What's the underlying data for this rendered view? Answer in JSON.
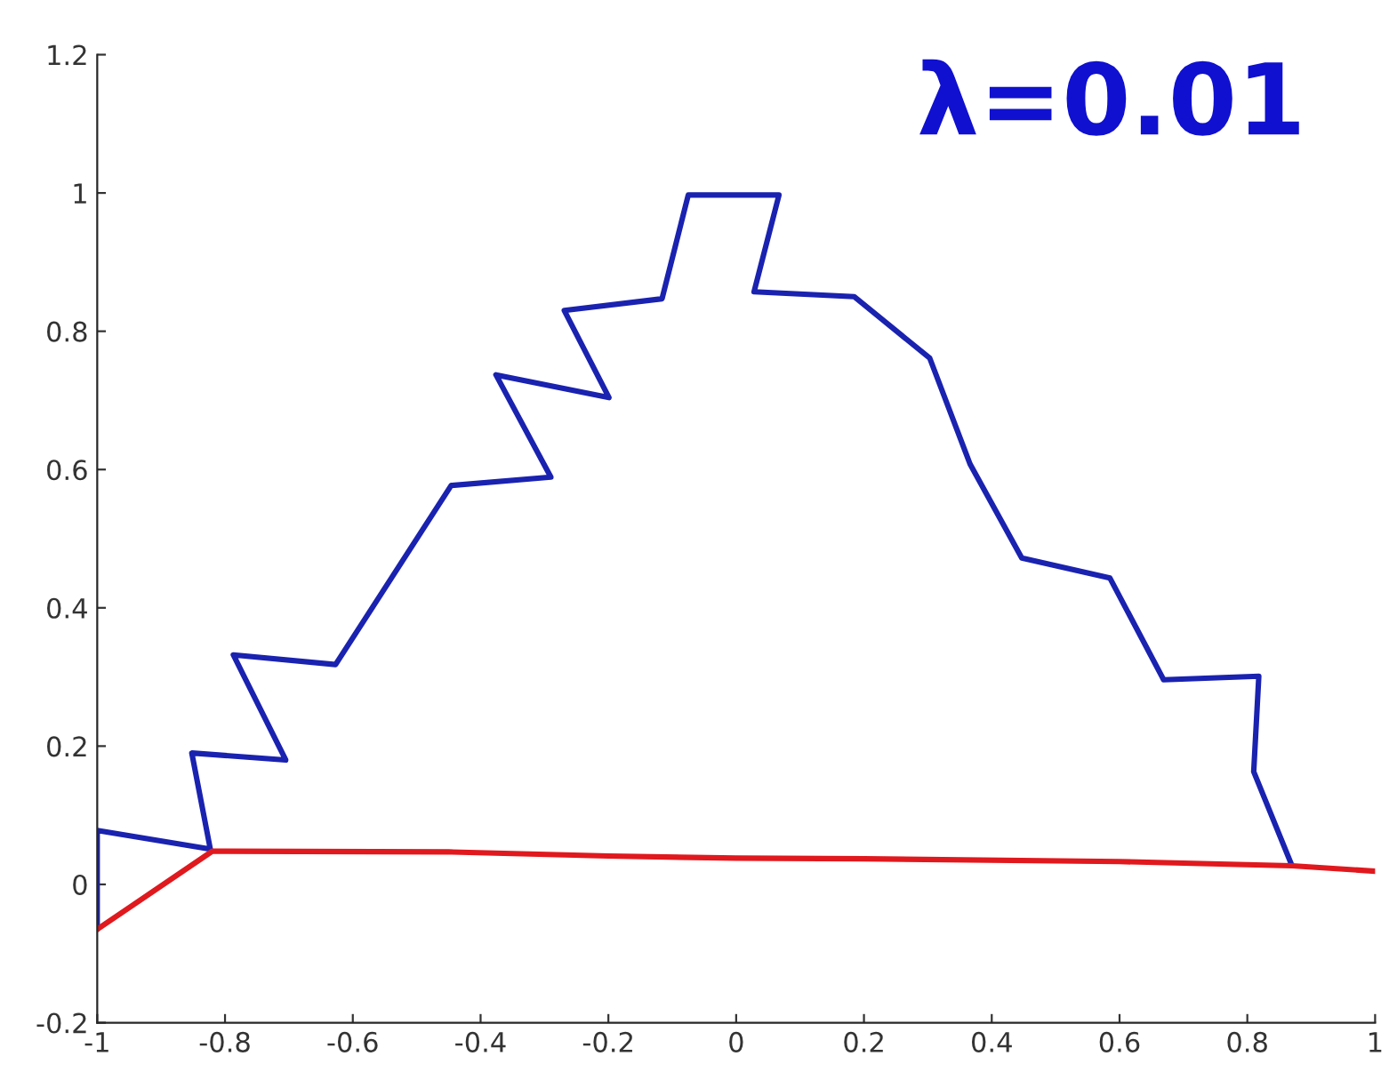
{
  "chart_data": {
    "type": "line",
    "series": [
      {
        "color": "#1a22b0",
        "x": [
          -1,
          -1,
          -0.823,
          -0.852,
          -0.705,
          -0.787,
          -0.627,
          -0.446,
          -0.29,
          -0.376,
          -0.199,
          -0.269,
          -0.116,
          -0.075,
          0.067,
          0.028,
          0.185,
          0.303,
          0.366,
          0.447,
          0.585,
          0.669,
          0.818,
          0.81,
          0.869
        ],
        "values": [
          -0.065,
          0.078,
          0.051,
          0.19,
          0.18,
          0.332,
          0.318,
          0.577,
          0.589,
          0.737,
          0.704,
          0.83,
          0.847,
          0.997,
          0.997,
          0.857,
          0.85,
          0.761,
          0.608,
          0.472,
          0.443,
          0.296,
          0.301,
          0.163,
          0.029
        ]
      },
      {
        "color": "#e0191e",
        "x": [
          -1,
          -0.82,
          -0.45,
          -0.2,
          0,
          0.2,
          0.6,
          0.87,
          1
        ],
        "values": [
          -0.065,
          0.048,
          0.047,
          0.041,
          0.038,
          0.037,
          0.033,
          0.027,
          0.019
        ]
      }
    ],
    "annotations": [
      "λ=0.01"
    ],
    "xlim": [
      -1,
      1
    ],
    "ylim": [
      -0.2,
      1.2
    ],
    "xticks": [
      -1,
      -0.8,
      -0.6,
      -0.4,
      -0.2,
      0,
      0.2,
      0.4,
      0.6,
      0.8,
      1
    ],
    "yticks": [
      -0.2,
      0,
      0.2,
      0.4,
      0.6,
      0.8,
      1,
      1.2
    ],
    "grid": false,
    "legend": false,
    "marker": "none",
    "line_style": "solid"
  }
}
